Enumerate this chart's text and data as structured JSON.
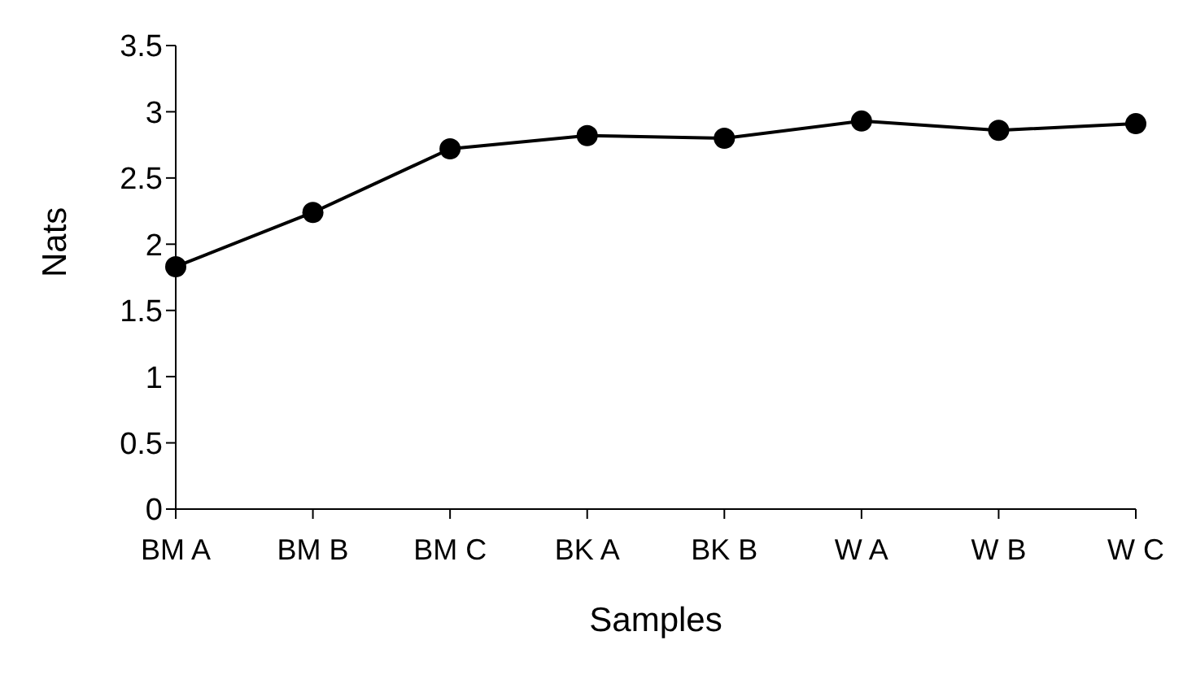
{
  "chart_data": {
    "type": "line",
    "xlabel": "Samples",
    "ylabel": "Nats",
    "categories": [
      "BM A",
      "BM B",
      "BM C",
      "BK A",
      "BK B",
      "W A",
      "W B",
      "W C"
    ],
    "series": [
      {
        "color": "#000000",
        "values": [
          1.83,
          2.24,
          2.72,
          2.82,
          2.8,
          2.93,
          2.86,
          2.91
        ]
      }
    ],
    "ylim": [
      0,
      3.5
    ],
    "yticks": [
      0,
      0.5,
      1,
      1.5,
      2,
      2.5,
      3,
      3.5
    ],
    "grid": false,
    "legend": false,
    "marker": "circle",
    "line_style": "solid"
  }
}
